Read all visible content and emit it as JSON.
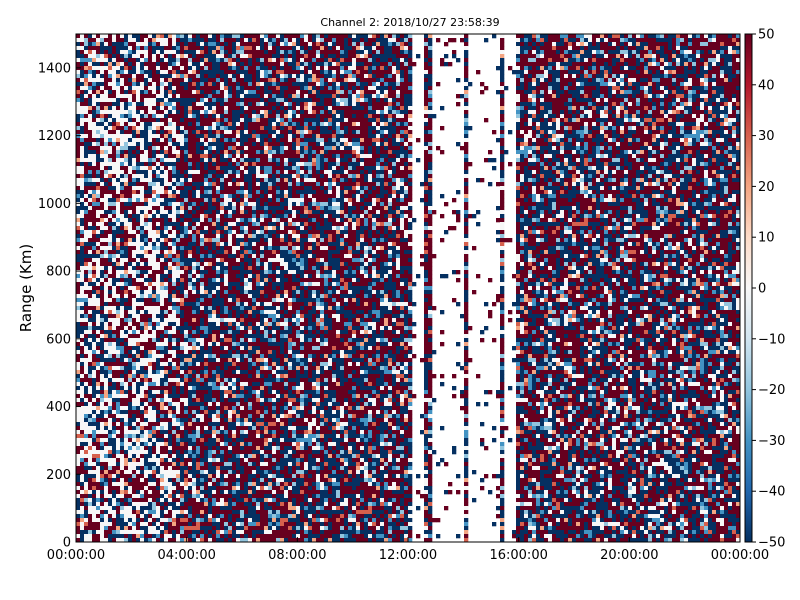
{
  "chart_data": {
    "type": "heatmap",
    "title": "Channel 2: 2018/10/27 23:58:39",
    "xlabel": "",
    "ylabel": "Range (Km)",
    "x_ticks": [
      "00:00:00",
      "04:00:00",
      "08:00:00",
      "12:00:00",
      "16:00:00",
      "20:00:00",
      "00:00:00"
    ],
    "y_ticks": [
      "0",
      "200",
      "400",
      "600",
      "800",
      "1000",
      "1200",
      "1400"
    ],
    "y_tick_values": [
      0,
      200,
      400,
      600,
      800,
      1000,
      1200,
      1400
    ],
    "ylim": [
      0,
      1500
    ],
    "x_range_hours": [
      0,
      24
    ],
    "colorbar": {
      "ticks": [
        "50",
        "40",
        "30",
        "20",
        "10",
        "0",
        "−10",
        "−20",
        "−30",
        "−40",
        "−50"
      ],
      "tick_values": [
        50,
        40,
        30,
        20,
        10,
        0,
        -10,
        -20,
        -30,
        -40,
        -50
      ],
      "range": [
        -50,
        50
      ],
      "colormap": "RdBu_r"
    },
    "data_gaps_hours": [
      [
        12.25,
        12.45
      ],
      [
        12.9,
        13.9
      ],
      [
        14.3,
        15.2
      ],
      [
        15.55,
        15.7
      ],
      [
        15.75,
        15.9
      ]
    ],
    "colors": {
      "dark_red": "#67001f",
      "red": "#d6604d",
      "light_red": "#f4a582",
      "white": "#f7f7f7",
      "light_blue": "#92c5de",
      "blue": "#4393c3",
      "dark_blue": "#053061"
    }
  }
}
